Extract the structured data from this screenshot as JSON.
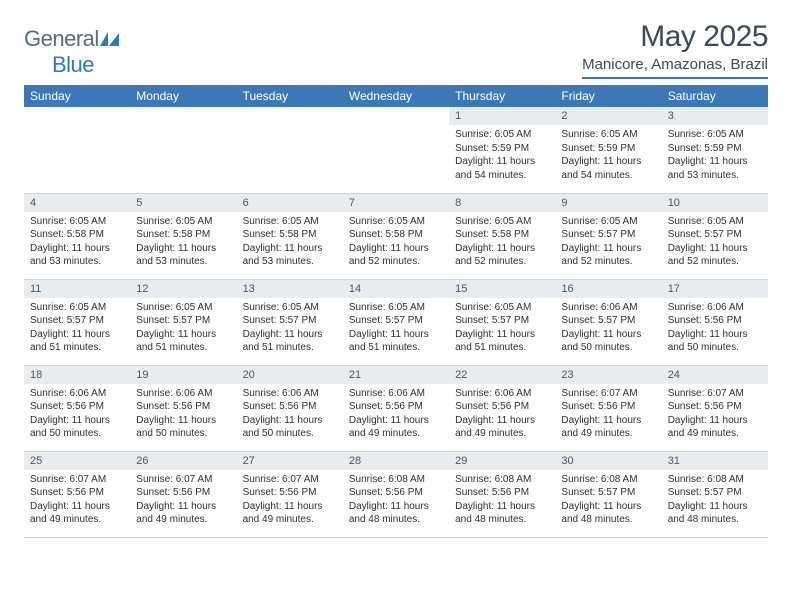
{
  "logo": {
    "text1": "General",
    "text2": "Blue"
  },
  "title": "May 2025",
  "location": "Manicore, Amazonas, Brazil",
  "colors": {
    "header_bg": "#3b78b5",
    "header_text": "#ffffff",
    "daynum_bg": "#e9ecef",
    "text": "#333333",
    "rule": "#cfd4d9"
  },
  "weekdays": [
    "Sunday",
    "Monday",
    "Tuesday",
    "Wednesday",
    "Thursday",
    "Friday",
    "Saturday"
  ],
  "weeks": [
    [
      {
        "n": "",
        "sr": "",
        "ss": "",
        "dl": ""
      },
      {
        "n": "",
        "sr": "",
        "ss": "",
        "dl": ""
      },
      {
        "n": "",
        "sr": "",
        "ss": "",
        "dl": ""
      },
      {
        "n": "",
        "sr": "",
        "ss": "",
        "dl": ""
      },
      {
        "n": "1",
        "sr": "6:05 AM",
        "ss": "5:59 PM",
        "dl": "11 hours and 54 minutes."
      },
      {
        "n": "2",
        "sr": "6:05 AM",
        "ss": "5:59 PM",
        "dl": "11 hours and 54 minutes."
      },
      {
        "n": "3",
        "sr": "6:05 AM",
        "ss": "5:59 PM",
        "dl": "11 hours and 53 minutes."
      }
    ],
    [
      {
        "n": "4",
        "sr": "6:05 AM",
        "ss": "5:58 PM",
        "dl": "11 hours and 53 minutes."
      },
      {
        "n": "5",
        "sr": "6:05 AM",
        "ss": "5:58 PM",
        "dl": "11 hours and 53 minutes."
      },
      {
        "n": "6",
        "sr": "6:05 AM",
        "ss": "5:58 PM",
        "dl": "11 hours and 53 minutes."
      },
      {
        "n": "7",
        "sr": "6:05 AM",
        "ss": "5:58 PM",
        "dl": "11 hours and 52 minutes."
      },
      {
        "n": "8",
        "sr": "6:05 AM",
        "ss": "5:58 PM",
        "dl": "11 hours and 52 minutes."
      },
      {
        "n": "9",
        "sr": "6:05 AM",
        "ss": "5:57 PM",
        "dl": "11 hours and 52 minutes."
      },
      {
        "n": "10",
        "sr": "6:05 AM",
        "ss": "5:57 PM",
        "dl": "11 hours and 52 minutes."
      }
    ],
    [
      {
        "n": "11",
        "sr": "6:05 AM",
        "ss": "5:57 PM",
        "dl": "11 hours and 51 minutes."
      },
      {
        "n": "12",
        "sr": "6:05 AM",
        "ss": "5:57 PM",
        "dl": "11 hours and 51 minutes."
      },
      {
        "n": "13",
        "sr": "6:05 AM",
        "ss": "5:57 PM",
        "dl": "11 hours and 51 minutes."
      },
      {
        "n": "14",
        "sr": "6:05 AM",
        "ss": "5:57 PM",
        "dl": "11 hours and 51 minutes."
      },
      {
        "n": "15",
        "sr": "6:05 AM",
        "ss": "5:57 PM",
        "dl": "11 hours and 51 minutes."
      },
      {
        "n": "16",
        "sr": "6:06 AM",
        "ss": "5:57 PM",
        "dl": "11 hours and 50 minutes."
      },
      {
        "n": "17",
        "sr": "6:06 AM",
        "ss": "5:56 PM",
        "dl": "11 hours and 50 minutes."
      }
    ],
    [
      {
        "n": "18",
        "sr": "6:06 AM",
        "ss": "5:56 PM",
        "dl": "11 hours and 50 minutes."
      },
      {
        "n": "19",
        "sr": "6:06 AM",
        "ss": "5:56 PM",
        "dl": "11 hours and 50 minutes."
      },
      {
        "n": "20",
        "sr": "6:06 AM",
        "ss": "5:56 PM",
        "dl": "11 hours and 50 minutes."
      },
      {
        "n": "21",
        "sr": "6:06 AM",
        "ss": "5:56 PM",
        "dl": "11 hours and 49 minutes."
      },
      {
        "n": "22",
        "sr": "6:06 AM",
        "ss": "5:56 PM",
        "dl": "11 hours and 49 minutes."
      },
      {
        "n": "23",
        "sr": "6:07 AM",
        "ss": "5:56 PM",
        "dl": "11 hours and 49 minutes."
      },
      {
        "n": "24",
        "sr": "6:07 AM",
        "ss": "5:56 PM",
        "dl": "11 hours and 49 minutes."
      }
    ],
    [
      {
        "n": "25",
        "sr": "6:07 AM",
        "ss": "5:56 PM",
        "dl": "11 hours and 49 minutes."
      },
      {
        "n": "26",
        "sr": "6:07 AM",
        "ss": "5:56 PM",
        "dl": "11 hours and 49 minutes."
      },
      {
        "n": "27",
        "sr": "6:07 AM",
        "ss": "5:56 PM",
        "dl": "11 hours and 49 minutes."
      },
      {
        "n": "28",
        "sr": "6:08 AM",
        "ss": "5:56 PM",
        "dl": "11 hours and 48 minutes."
      },
      {
        "n": "29",
        "sr": "6:08 AM",
        "ss": "5:56 PM",
        "dl": "11 hours and 48 minutes."
      },
      {
        "n": "30",
        "sr": "6:08 AM",
        "ss": "5:57 PM",
        "dl": "11 hours and 48 minutes."
      },
      {
        "n": "31",
        "sr": "6:08 AM",
        "ss": "5:57 PM",
        "dl": "11 hours and 48 minutes."
      }
    ]
  ],
  "labels": {
    "sunrise": "Sunrise:",
    "sunset": "Sunset:",
    "daylight": "Daylight:"
  }
}
